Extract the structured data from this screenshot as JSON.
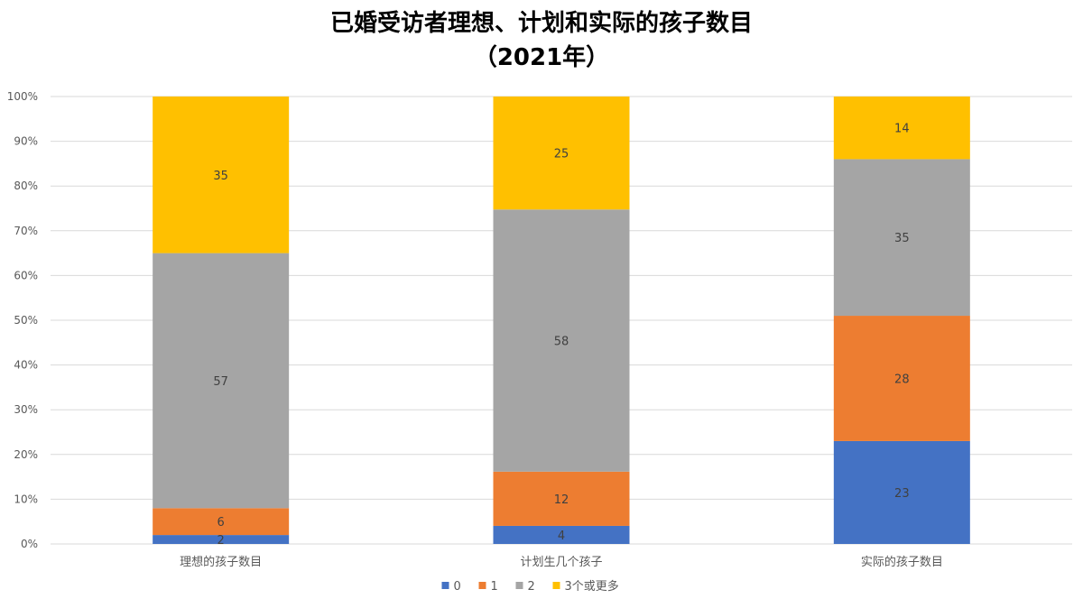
{
  "chart_data": {
    "type": "bar",
    "stacked": true,
    "percent_stacked": true,
    "title": "已婚受访者理想、计划和实际的孩子数目",
    "subtitle": "（2021年）",
    "xlabel": "",
    "ylabel": "",
    "ylim": [
      0,
      100
    ],
    "y_ticks": [
      "0%",
      "10%",
      "20%",
      "30%",
      "40%",
      "50%",
      "60%",
      "70%",
      "80%",
      "90%",
      "100%"
    ],
    "grid": true,
    "legend_position": "bottom",
    "categories": [
      "理想的孩子数目",
      "计划生几个孩子",
      "实际的孩子数目"
    ],
    "series": [
      {
        "name": "0",
        "color": "#4472C4",
        "values": [
          2,
          4,
          23
        ]
      },
      {
        "name": "1",
        "color": "#ED7D31",
        "values": [
          6,
          12,
          28
        ]
      },
      {
        "name": "2",
        "color": "#A5A5A5",
        "values": [
          57,
          58,
          35
        ]
      },
      {
        "name": "3个或更多",
        "color": "#FFC000",
        "values": [
          35,
          25,
          14
        ]
      }
    ]
  }
}
